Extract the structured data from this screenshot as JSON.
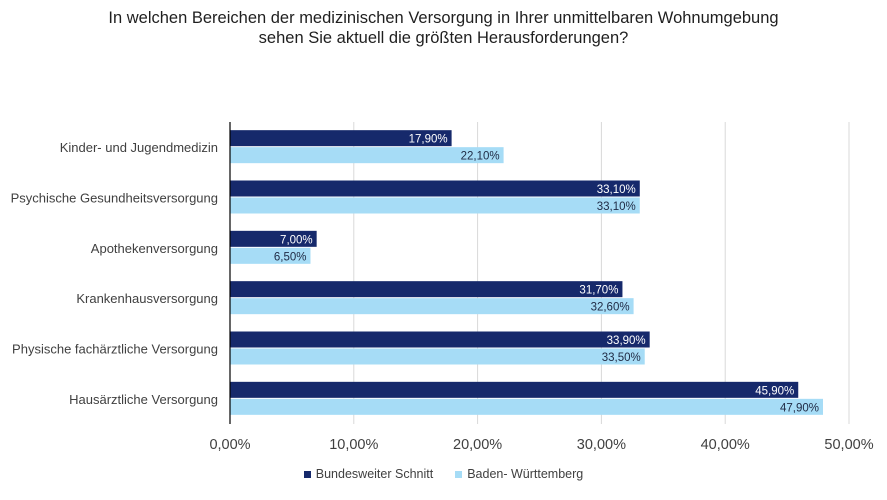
{
  "title_line1": "In welchen Bereichen der medizinischen Versorgung in Ihrer unmittelbaren Wohnumgebung",
  "title_line2": "sehen Sie aktuell die größten Herausforderungen?",
  "chart_data": {
    "type": "bar",
    "orientation": "horizontal",
    "categories": [
      "Kinder- und Jugendmedizin",
      "Psychische Gesundheitsversorgung",
      "Apothekenversorgung",
      "Krankenhausversorgung",
      "Physische fachärztliche Versorgung",
      "Hausärztliche Versorgung"
    ],
    "series": [
      {
        "name": "Bundesweiter Schnitt",
        "color": "#16296b",
        "values": [
          17.9,
          33.1,
          7.0,
          31.7,
          33.9,
          45.9
        ],
        "labels": [
          "17,90%",
          "33,10%",
          "7,00%",
          "31,70%",
          "33,90%",
          "45,90%"
        ]
      },
      {
        "name": "Baden- Württemberg",
        "color": "#a6dcf6",
        "values": [
          22.1,
          33.1,
          6.5,
          32.6,
          33.5,
          47.9
        ],
        "labels": [
          "22,10%",
          "33,10%",
          "6,50%",
          "32,60%",
          "33,50%",
          "47,90%"
        ]
      }
    ],
    "xlim": [
      0,
      50
    ],
    "xticks": [
      0,
      10,
      20,
      30,
      40,
      50
    ],
    "xtick_labels": [
      "0,00%",
      "10,00%",
      "20,00%",
      "30,00%",
      "40,00%",
      "50,00%"
    ],
    "grid": true,
    "legend_position": "bottom"
  }
}
